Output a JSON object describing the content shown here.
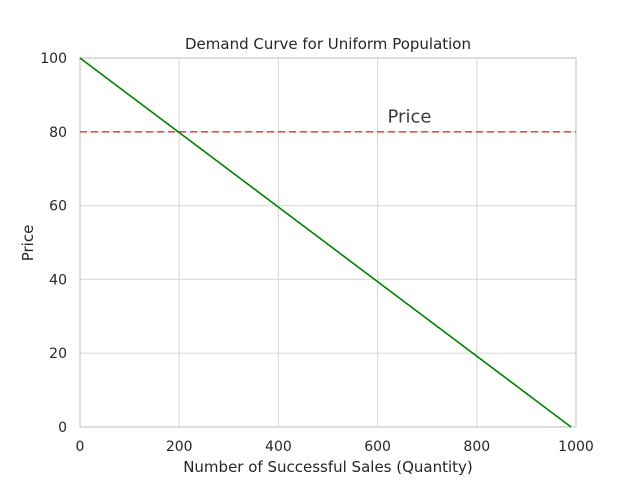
{
  "chart_data": {
    "type": "line",
    "title": "Demand Curve for Uniform Population",
    "xlabel": "Number of Successful Sales (Quantity)",
    "ylabel": "Price",
    "xlim": [
      0,
      1000
    ],
    "ylim": [
      0,
      100
    ],
    "xticks": [
      0,
      200,
      400,
      600,
      800,
      1000
    ],
    "yticks": [
      0,
      20,
      40,
      60,
      80,
      100
    ],
    "grid": true,
    "series": [
      {
        "color": "#008000",
        "style": "solid",
        "x": [
          0,
          990
        ],
        "y": [
          100,
          0
        ]
      }
    ],
    "hlines": [
      {
        "y": 80,
        "color": "#d9534f",
        "style": "dashed"
      }
    ],
    "annotations": [
      {
        "text": "Price",
        "x": 620,
        "y": 82.5
      }
    ]
  }
}
